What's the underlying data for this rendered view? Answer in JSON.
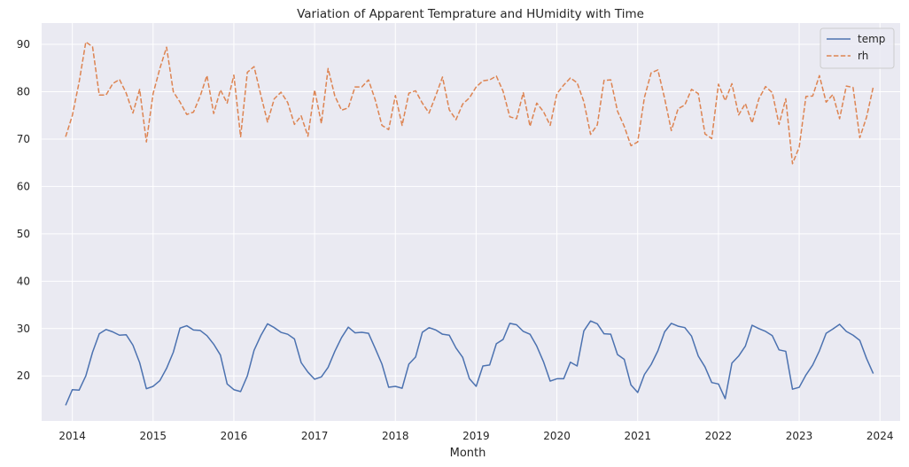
{
  "chart_data": {
    "type": "line",
    "title": "Variation of Apparent Temprature and HUmidity with Time",
    "xlabel": "Month",
    "ylabel": "",
    "xlim": [
      2013.62,
      2024.25
    ],
    "ylim": [
      10.5,
      94.5
    ],
    "x_ticks": [
      2014,
      2015,
      2016,
      2017,
      2018,
      2019,
      2020,
      2021,
      2022,
      2023,
      2024
    ],
    "y_ticks": [
      20,
      30,
      40,
      50,
      60,
      70,
      80,
      90
    ],
    "grid": true,
    "legend_position": "top-right",
    "x_start": 2013.917,
    "x_step_months": 1,
    "series": [
      {
        "name": "temp",
        "color": "#4c72b0",
        "dash": "solid",
        "values": [
          13.8,
          17.1,
          17.0,
          20.0,
          25.0,
          28.9,
          29.8,
          29.3,
          28.6,
          28.7,
          26.5,
          22.8,
          17.3,
          17.8,
          19.0,
          21.6,
          25.0,
          30.1,
          30.6,
          29.7,
          29.6,
          28.5,
          26.7,
          24.4,
          18.3,
          17.1,
          16.7,
          20.0,
          25.4,
          28.5,
          31.0,
          30.2,
          29.2,
          28.8,
          27.8,
          22.8,
          20.8,
          19.3,
          19.8,
          21.8,
          25.2,
          28.1,
          30.3,
          29.1,
          29.2,
          29.0,
          25.8,
          22.5,
          17.6,
          17.8,
          17.4,
          22.5,
          24.0,
          29.2,
          30.2,
          29.7,
          28.8,
          28.6,
          25.9,
          23.9,
          19.4,
          17.8,
          22.1,
          22.3,
          26.8,
          27.7,
          31.1,
          30.8,
          29.4,
          28.8,
          26.3,
          23.0,
          18.9,
          19.4,
          19.4,
          22.9,
          22.1,
          29.5,
          31.6,
          31.0,
          28.9,
          28.8,
          24.5,
          23.5,
          18.1,
          16.5,
          20.3,
          22.4,
          25.3,
          29.3,
          31.1,
          30.5,
          30.2,
          28.4,
          24.2,
          21.9,
          18.6,
          18.3,
          15.2,
          22.7,
          24.2,
          26.3,
          30.7,
          30.0,
          29.4,
          28.5,
          25.5,
          25.2,
          17.2,
          17.6,
          20.2,
          22.3,
          25.3,
          29.0,
          29.9,
          30.9,
          29.4,
          28.6,
          27.5,
          23.7,
          20.5
        ]
      },
      {
        "name": "rh",
        "color": "#dd8452",
        "dash": "dashed",
        "values": [
          70.5,
          75.0,
          82.0,
          90.5,
          89.5,
          79.3,
          79.3,
          81.7,
          82.6,
          79.7,
          75.5,
          80.5,
          69.4,
          79.6,
          84.9,
          89.4,
          80.0,
          77.8,
          75.2,
          75.7,
          79.1,
          83.4,
          75.4,
          80.4,
          77.6,
          83.5,
          70.5,
          84.1,
          85.3,
          79.3,
          73.6,
          78.5,
          79.9,
          77.7,
          73.1,
          74.9,
          70.6,
          80.4,
          73.3,
          84.9,
          79.1,
          76.1,
          76.6,
          81.0,
          81.0,
          82.5,
          78.3,
          72.9,
          72.0,
          79.2,
          72.9,
          79.7,
          80.2,
          77.6,
          75.5,
          79.2,
          83.1,
          76.2,
          74.1,
          77.4,
          78.7,
          81.0,
          82.3,
          82.5,
          83.3,
          80.1,
          74.7,
          74.3,
          79.8,
          72.7,
          77.6,
          75.8,
          72.9,
          79.6,
          81.4,
          82.9,
          81.9,
          77.9,
          71.0,
          73.0,
          82.4,
          82.5,
          75.9,
          72.7,
          68.6,
          69.4,
          78.8,
          84.0,
          84.6,
          78.6,
          71.8,
          76.4,
          77.2,
          80.5,
          79.6,
          71.1,
          70.1,
          81.6,
          78.1,
          81.7,
          75.1,
          77.5,
          73.4,
          78.5,
          81.1,
          79.8,
          73.1,
          78.5,
          64.8,
          68.3,
          79.0,
          79.1,
          83.4,
          77.8,
          79.4,
          74.3,
          81.2,
          80.9,
          70.3,
          74.6,
          81.0
        ]
      }
    ]
  }
}
